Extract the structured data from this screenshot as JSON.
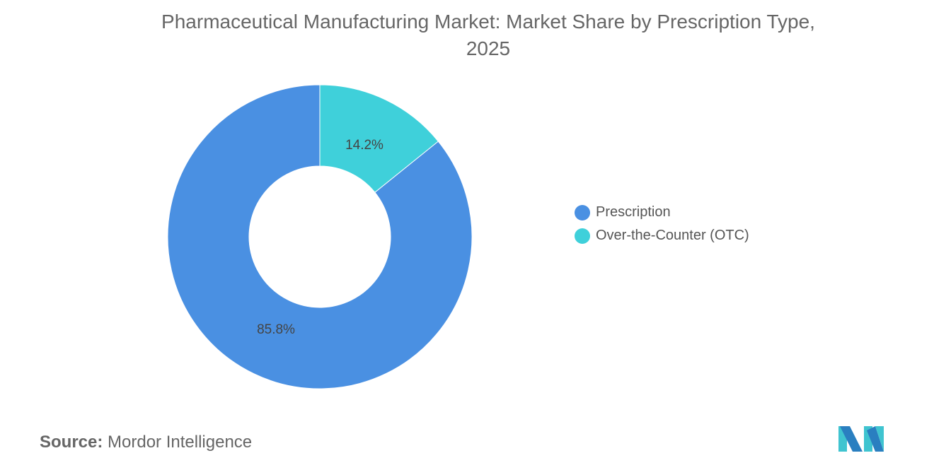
{
  "chart_data": {
    "type": "pie",
    "donut": true,
    "title": "Pharmaceutical Manufacturing Market: Market Share by Prescription Type, 2025",
    "slices": [
      {
        "label": "Over-the-Counter (OTC)",
        "value": 14.2,
        "display": "14.2%",
        "color": "#3fd0da"
      },
      {
        "label": "Prescription",
        "value": 85.8,
        "display": "85.8%",
        "color": "#4a90e2"
      }
    ],
    "legend": {
      "placement": "right",
      "items": [
        "Prescription",
        "Over-the-Counter (OTC)"
      ]
    }
  },
  "title_line1": "Pharmaceutical Manufacturing Market: Market Share by Prescription Type,",
  "title_line2": "2025",
  "source_label": "Source:",
  "source_value": "Mordor Intelligence",
  "logo_text": "Mordor Intelligence"
}
